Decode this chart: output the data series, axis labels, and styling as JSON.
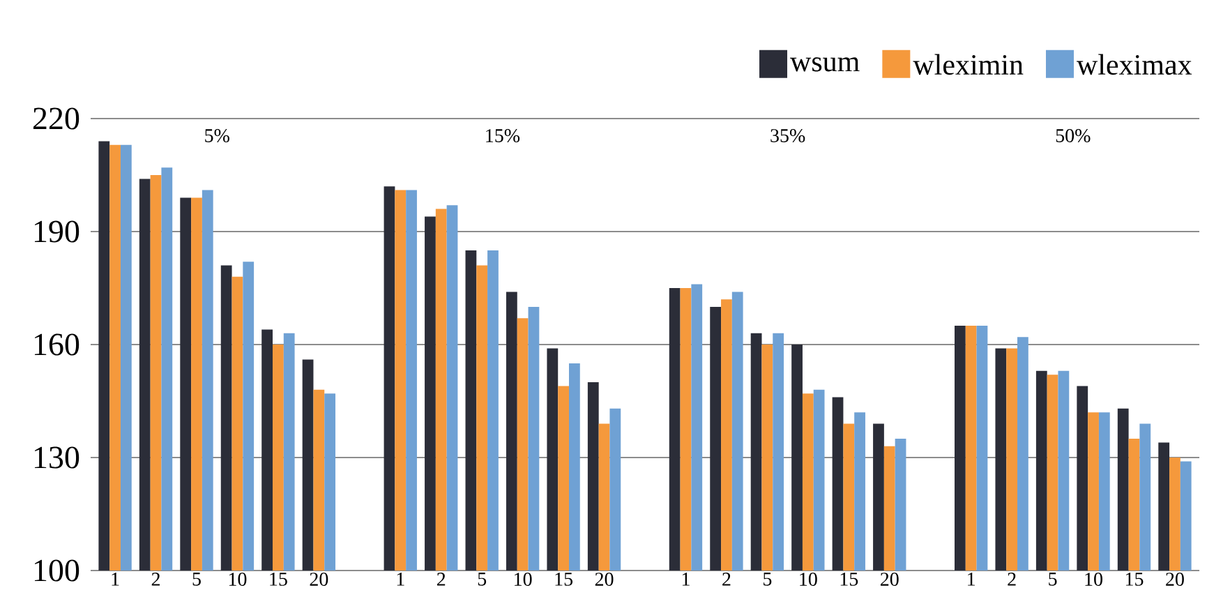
{
  "chart_data": {
    "type": "bar",
    "categories": [
      "1",
      "2",
      "5",
      "10",
      "15",
      "20",
      null,
      "1",
      "2",
      "5",
      "10",
      "15",
      "20",
      null,
      "1",
      "2",
      "5",
      "10",
      "15",
      "20",
      null,
      "1",
      "2",
      "5",
      "10",
      "15",
      "20"
    ],
    "series": [
      {
        "name": "wsum",
        "color": "#2b2d38",
        "values": [
          214,
          204,
          199,
          181,
          164,
          156,
          null,
          202,
          194,
          185,
          174,
          159,
          150,
          null,
          175,
          170,
          163,
          160,
          146,
          139,
          null,
          165,
          159,
          153,
          149,
          143,
          134
        ]
      },
      {
        "name": "wleximin",
        "color": "#f5993c",
        "values": [
          213,
          205,
          199,
          178,
          160,
          148,
          null,
          201,
          196,
          181,
          167,
          149,
          139,
          null,
          175,
          172,
          160,
          147,
          139,
          133,
          null,
          165,
          159,
          152,
          142,
          135,
          130
        ]
      },
      {
        "name": "wleximax",
        "color": "#6fa1d4",
        "values": [
          213,
          207,
          201,
          182,
          163,
          147,
          null,
          201,
          197,
          185,
          170,
          155,
          143,
          null,
          176,
          174,
          163,
          148,
          142,
          135,
          null,
          165,
          162,
          153,
          142,
          139,
          129
        ]
      }
    ],
    "ylim": [
      100,
      220
    ],
    "yticks": [
      100,
      130,
      160,
      190,
      220
    ],
    "annotations": [
      "5%",
      "15%",
      "35%",
      "50%"
    ],
    "grid": "y",
    "legend": "top right"
  }
}
